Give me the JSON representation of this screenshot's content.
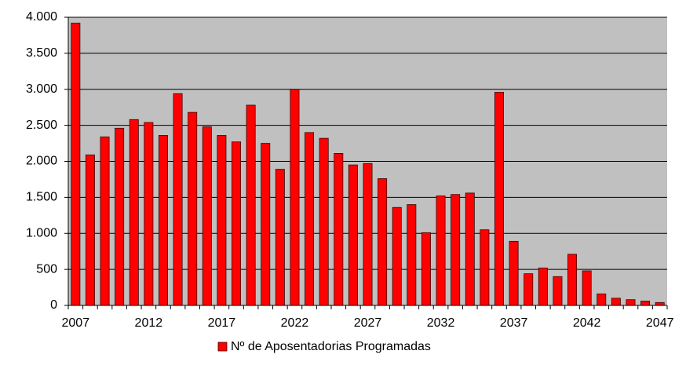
{
  "chart_data": {
    "type": "bar",
    "categories": [
      "2007",
      null,
      null,
      null,
      null,
      "2012",
      null,
      null,
      null,
      null,
      "2017",
      null,
      null,
      null,
      null,
      "2022",
      null,
      null,
      null,
      null,
      "2027",
      null,
      null,
      null,
      null,
      "2032",
      null,
      null,
      null,
      null,
      "2037",
      null,
      null,
      null,
      null,
      "2042",
      null,
      null,
      null,
      null,
      "2047"
    ],
    "series": [
      {
        "name": "Nº de Aposentadorias Programadas",
        "color": "#ff0000",
        "values": [
          3920,
          2090,
          2340,
          2460,
          2580,
          2540,
          2360,
          2940,
          2680,
          2480,
          2360,
          2270,
          2780,
          2250,
          1890,
          3000,
          2400,
          2320,
          2110,
          1950,
          1970,
          1760,
          1360,
          1400,
          1010,
          1520,
          1540,
          1560,
          1050,
          2960,
          890,
          440,
          520,
          400,
          710,
          480,
          160,
          100,
          80,
          60,
          40
        ]
      }
    ],
    "ylim": [
      0,
      4000
    ],
    "yticks": [
      0,
      500,
      {
        "value": 1000,
        "label": "1.000"
      },
      {
        "value": 1500,
        "label": "1.500"
      },
      {
        "value": 2000,
        "label": "2.000"
      },
      {
        "value": 2500,
        "label": "2.500"
      },
      {
        "value": 3000,
        "label": "3.000"
      },
      {
        "value": 3500,
        "label": "3.500"
      },
      {
        "value": 4000,
        "label": "4.000"
      }
    ],
    "grid": true,
    "legend": "bottom",
    "background": "#c0c0c0"
  }
}
